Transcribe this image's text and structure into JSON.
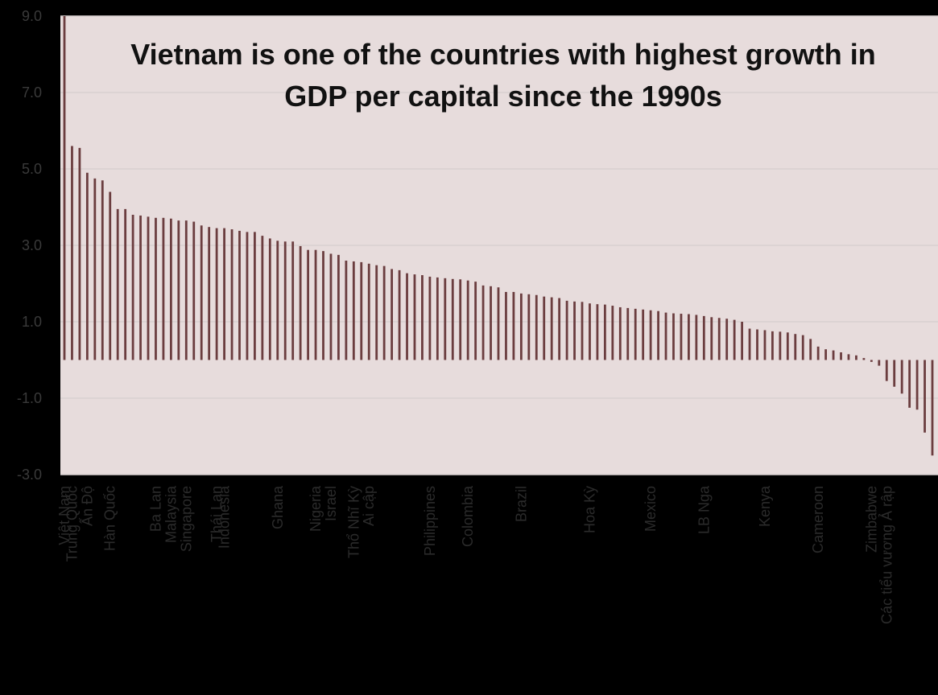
{
  "colors": {
    "background": "#000000",
    "plot_area": "#e7dcdc",
    "bar": "#6b3d3f",
    "gridline": "#d9d0d0",
    "axis_text": "#3a3a3a"
  },
  "chart_data": {
    "type": "bar",
    "title_lines": [
      "Vietnam is one of the countries with highest growth in",
      "GDP per capital since the 1990s"
    ],
    "xlabel": "",
    "ylabel": "",
    "ylim": [
      -3.0,
      9.0
    ],
    "yticks": [
      "9.0",
      "7.0",
      "5.0",
      "3.0",
      "1.0",
      "-1.0",
      "-3.0"
    ],
    "grid": true,
    "values": [
      9.0,
      5.6,
      5.55,
      4.9,
      4.75,
      4.7,
      4.4,
      3.95,
      3.95,
      3.8,
      3.78,
      3.75,
      3.72,
      3.72,
      3.7,
      3.65,
      3.65,
      3.62,
      3.52,
      3.48,
      3.45,
      3.45,
      3.42,
      3.38,
      3.35,
      3.35,
      3.25,
      3.18,
      3.12,
      3.1,
      3.1,
      2.98,
      2.88,
      2.88,
      2.85,
      2.78,
      2.75,
      2.6,
      2.58,
      2.56,
      2.52,
      2.48,
      2.46,
      2.38,
      2.35,
      2.27,
      2.24,
      2.22,
      2.18,
      2.16,
      2.14,
      2.12,
      2.11,
      2.08,
      2.05,
      1.95,
      1.93,
      1.9,
      1.78,
      1.78,
      1.74,
      1.72,
      1.7,
      1.66,
      1.64,
      1.62,
      1.55,
      1.53,
      1.52,
      1.48,
      1.46,
      1.45,
      1.42,
      1.38,
      1.36,
      1.34,
      1.32,
      1.3,
      1.28,
      1.24,
      1.22,
      1.21,
      1.2,
      1.18,
      1.15,
      1.12,
      1.1,
      1.08,
      1.05,
      1.0,
      0.82,
      0.8,
      0.78,
      0.75,
      0.74,
      0.72,
      0.68,
      0.65,
      0.55,
      0.35,
      0.28,
      0.25,
      0.2,
      0.15,
      0.12,
      0.05,
      -0.05,
      -0.15,
      -0.55,
      -0.7,
      -0.88,
      -1.25,
      -1.3,
      -1.9,
      -2.5
    ],
    "category_labels": [
      {
        "label": "Việt Nam",
        "index": 0
      },
      {
        "label": "Trung Quốc",
        "index": 1
      },
      {
        "label": "Ấn Độ",
        "index": 3
      },
      {
        "label": "Hàn Quốc",
        "index": 6
      },
      {
        "label": "Ba Lan",
        "index": 12
      },
      {
        "label": "Malaysia",
        "index": 14
      },
      {
        "label": "Singapore",
        "index": 16
      },
      {
        "label": "Thái Lan",
        "index": 20
      },
      {
        "label": "Indonesia",
        "index": 21
      },
      {
        "label": "Ghana",
        "index": 28
      },
      {
        "label": "Nigeria",
        "index": 33
      },
      {
        "label": "Israel",
        "index": 35
      },
      {
        "label": "Thổ Nhĩ Kỳ",
        "index": 38
      },
      {
        "label": "Ai cập",
        "index": 40
      },
      {
        "label": "Philippines",
        "index": 48
      },
      {
        "label": "Colombia",
        "index": 53
      },
      {
        "label": "Brazil",
        "index": 60
      },
      {
        "label": "Hoa Kỳ",
        "index": 69
      },
      {
        "label": "Mexico",
        "index": 77
      },
      {
        "label": "LB Nga",
        "index": 84
      },
      {
        "label": "Kenya",
        "index": 92
      },
      {
        "label": "Cameroon",
        "index": 99
      },
      {
        "label": "Zimbabwe",
        "index": 106
      },
      {
        "label": "Các tiểu vương Ả rập",
        "index": 108
      }
    ]
  }
}
